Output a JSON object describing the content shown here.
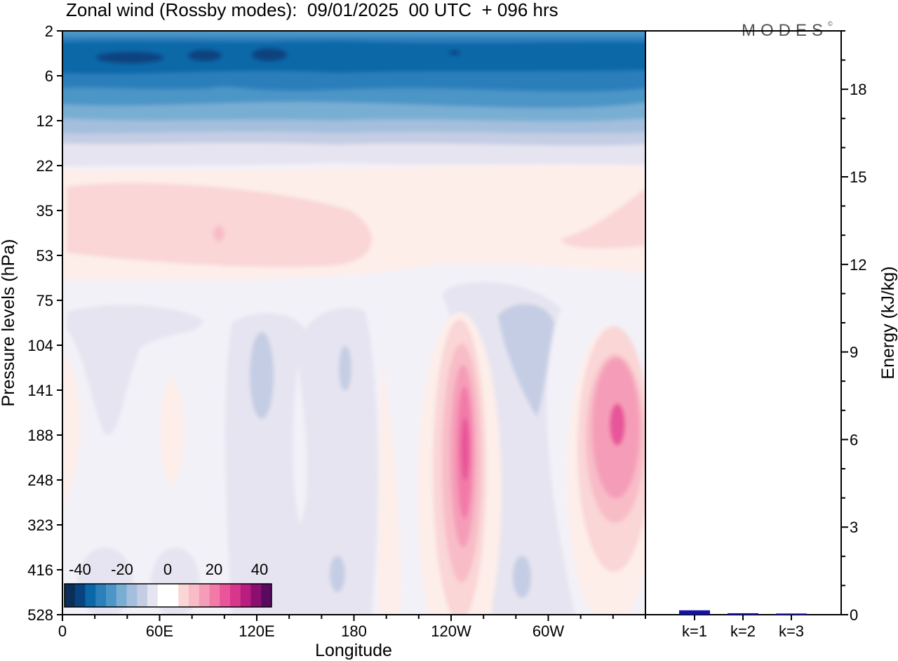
{
  "title": "Zonal wind (Rossby modes):  09/01/2025  00 UTC  + 096 hrs",
  "brand": {
    "name": "MODES",
    "mark": "©"
  },
  "colors": {
    "neg": [
      "#0a2e57",
      "#08437f",
      "#0b68a8",
      "#2b7fbb",
      "#4c95c7",
      "#79aed3",
      "#a3bfdd",
      "#c4cde4",
      "#e6e4f0"
    ],
    "mid": [
      "#f3f1f8",
      "#fdeeea"
    ],
    "pos": [
      "#fad6d6",
      "#f8bcc7",
      "#f59db8",
      "#f27aa8",
      "#e8559a",
      "#d7368c",
      "#b91d7f",
      "#8b0f70",
      "#5a0a5e"
    ],
    "bar": "#1414a0"
  },
  "chart_data": [
    {
      "type": "heatmap",
      "variable": "Zonal wind",
      "xlabel": "Longitude",
      "ylabel": "Pressure levels (hPa)",
      "x_ticks": [
        "0",
        "60E",
        "120E",
        "180",
        "120W",
        "60W"
      ],
      "x_tick_degrees": [
        0,
        60,
        120,
        180,
        240,
        300
      ],
      "xlim": [
        0,
        360
      ],
      "y_ticks": [
        "2",
        "6",
        "12",
        "22",
        "35",
        "53",
        "75",
        "104",
        "141",
        "188",
        "248",
        "323",
        "416",
        "528"
      ],
      "colorbar": {
        "labels": [
          "-40",
          "-20",
          "0",
          "20",
          "40"
        ],
        "levels": [
          -40,
          -20,
          0,
          20,
          40
        ]
      },
      "features": [
        {
          "lon_range": [
            0,
            360
          ],
          "levels": [
            "2",
            "12"
          ],
          "value": -35
        },
        {
          "lon_range": [
            0,
            360
          ],
          "levels": [
            "22",
            "53"
          ],
          "value": 6
        },
        {
          "lon_range": [
            240,
            255
          ],
          "levels": [
            "141",
            "323"
          ],
          "value": 32
        },
        {
          "lon_range": [
            330,
            360
          ],
          "levels": [
            "141",
            "248"
          ],
          "value": 27
        },
        {
          "lon_range": [
            270,
            300
          ],
          "levels": [
            "75",
            "141"
          ],
          "value": -8
        },
        {
          "lon_range": [
            110,
            125
          ],
          "levels": [
            "104",
            "188"
          ],
          "value": -7
        }
      ]
    },
    {
      "type": "bar",
      "categories": [
        "k=1",
        "k=2",
        "k=3"
      ],
      "values": [
        0.15,
        0.05,
        0.04
      ],
      "ylabel": "Energy (kJ/kg)",
      "ylim": [
        0,
        20
      ],
      "y_ticks": [
        0,
        3,
        6,
        9,
        12,
        15,
        18
      ]
    }
  ]
}
